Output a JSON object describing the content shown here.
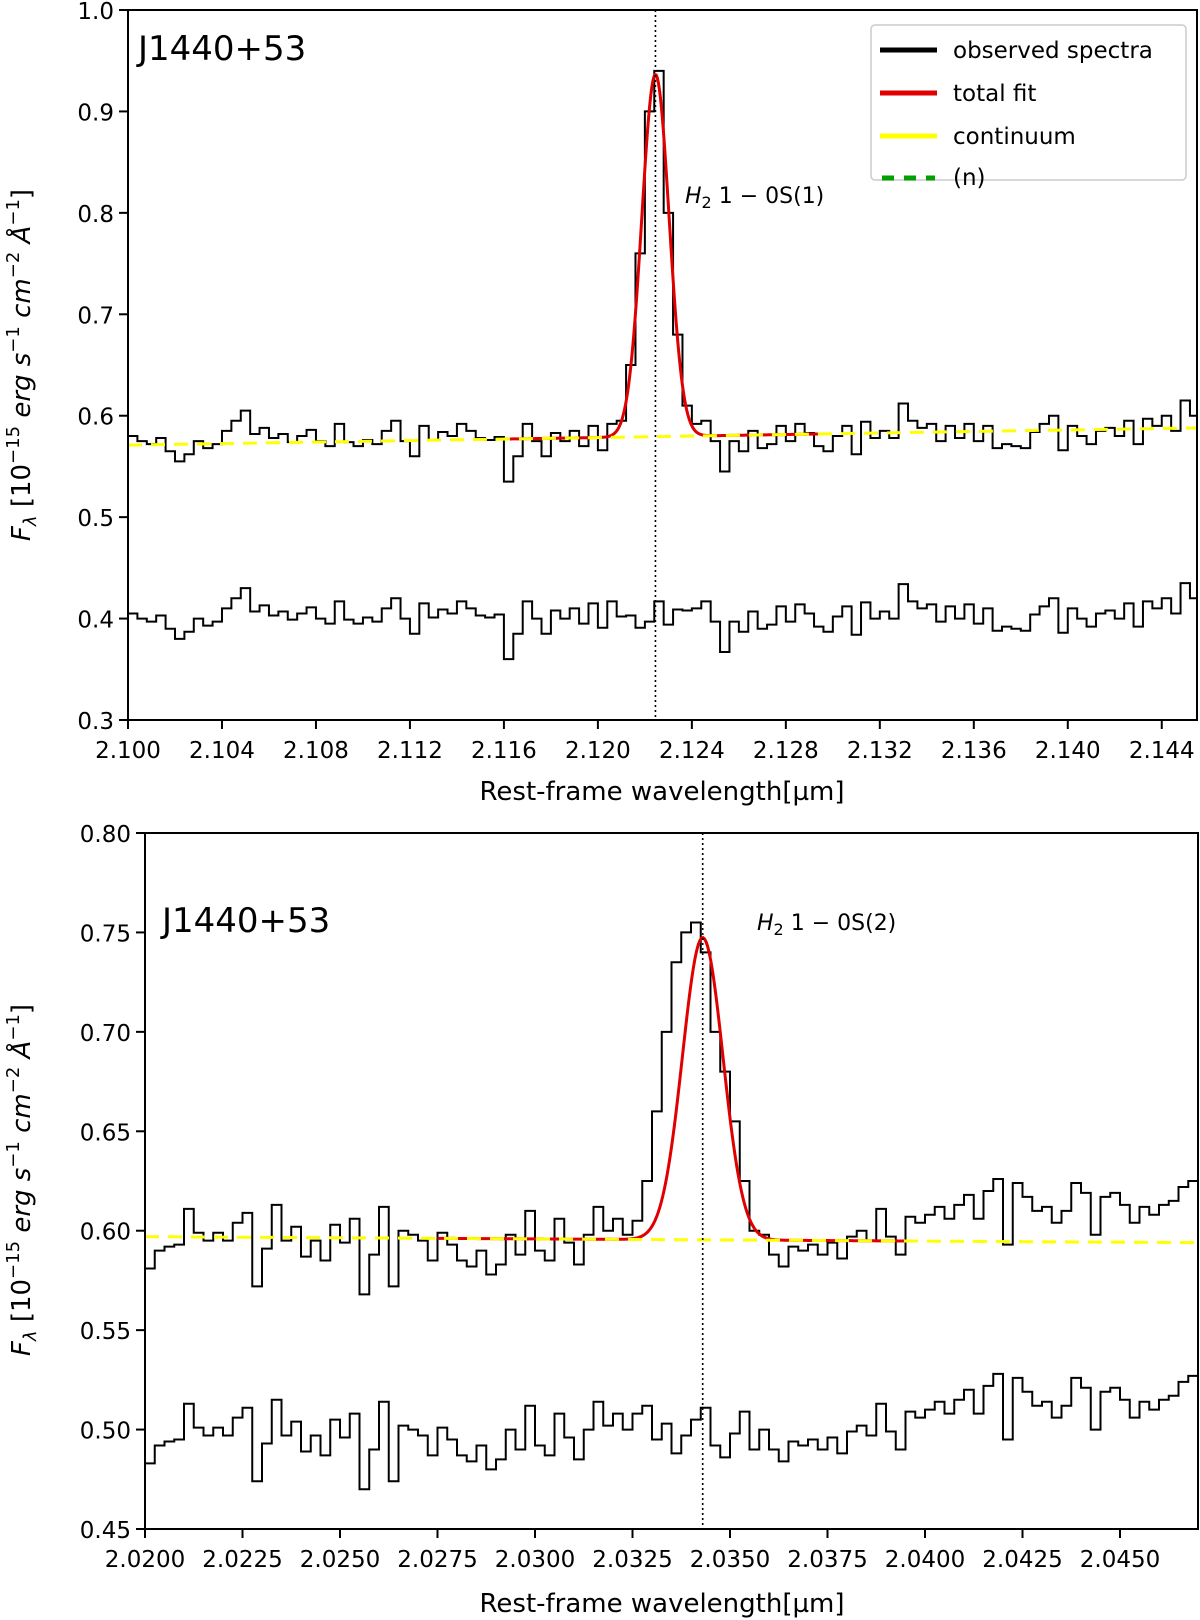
{
  "chart_data": [
    {
      "type": "line",
      "title": "J1440+53",
      "xlabel": "Rest-frame wavelength[µm]",
      "ylabel_segments": [
        {
          "t": "F",
          "s": "it"
        },
        {
          "t": "λ",
          "s": "sub"
        },
        {
          "t": " [10",
          "s": ""
        },
        {
          "t": "−15",
          "s": "sup"
        },
        {
          "t": " erg s",
          "s": "it"
        },
        {
          "t": "−1",
          "s": "sup"
        },
        {
          "t": " cm",
          "s": "it"
        },
        {
          "t": "−2",
          "s": "sup"
        },
        {
          "t": " Å",
          "s": "it"
        },
        {
          "t": "−1",
          "s": "sup"
        },
        {
          "t": "]",
          "s": ""
        }
      ],
      "xlim": [
        2.1,
        2.1455
      ],
      "ylim": [
        0.3,
        1.0
      ],
      "xticks": [
        "2.100",
        "2.104",
        "2.108",
        "2.112",
        "2.116",
        "2.120",
        "2.124",
        "2.128",
        "2.132",
        "2.136",
        "2.140",
        "2.144"
      ],
      "yticks": [
        "0.3",
        "0.4",
        "0.5",
        "0.6",
        "0.7",
        "0.8",
        "0.9",
        "1.0"
      ],
      "grid": false,
      "legend": {
        "placement": "top-right",
        "entries": [
          {
            "label": "observed spectra",
            "color": "#000000",
            "style": "solid"
          },
          {
            "label": "total fit",
            "color": "#e00000",
            "style": "solid"
          },
          {
            "label": "continuum",
            "color": "#ffff00",
            "style": "solid"
          },
          {
            "label": "(n)",
            "color": "#00a000",
            "style": "dashed"
          }
        ]
      },
      "line_marker": {
        "x": 2.12245,
        "label_main": "H",
        "label_sub": "2",
        "label_rest": " 1 − 0S(1)"
      },
      "bin_start": 2.1,
      "bin_width": 0.0004,
      "observed": [
        0.58,
        0.575,
        0.572,
        0.578,
        0.565,
        0.555,
        0.562,
        0.575,
        0.568,
        0.572,
        0.585,
        0.595,
        0.605,
        0.582,
        0.588,
        0.578,
        0.582,
        0.574,
        0.58,
        0.586,
        0.575,
        0.57,
        0.592,
        0.574,
        0.57,
        0.576,
        0.572,
        0.585,
        0.595,
        0.575,
        0.56,
        0.59,
        0.576,
        0.584,
        0.58,
        0.592,
        0.585,
        0.578,
        0.576,
        0.579,
        0.535,
        0.56,
        0.592,
        0.575,
        0.56,
        0.583,
        0.575,
        0.585,
        0.57,
        0.59,
        0.566,
        0.592,
        0.595,
        0.65,
        0.76,
        0.9,
        0.94,
        0.8,
        0.68,
        0.61,
        0.592,
        0.595,
        0.575,
        0.545,
        0.575,
        0.565,
        0.585,
        0.568,
        0.572,
        0.59,
        0.575,
        0.592,
        0.583,
        0.57,
        0.565,
        0.58,
        0.59,
        0.562,
        0.594,
        0.578,
        0.585,
        0.578,
        0.612,
        0.595,
        0.588,
        0.592,
        0.575,
        0.59,
        0.578,
        0.592,
        0.575,
        0.59,
        0.568,
        0.572,
        0.57,
        0.568,
        0.584,
        0.592,
        0.6,
        0.566,
        0.59,
        0.58,
        0.572,
        0.585,
        0.588,
        0.58,
        0.595,
        0.572,
        0.597,
        0.59,
        0.6,
        0.585,
        0.615,
        0.6
      ],
      "residual": [
        0.405,
        0.4,
        0.397,
        0.403,
        0.39,
        0.38,
        0.387,
        0.4,
        0.393,
        0.397,
        0.41,
        0.42,
        0.43,
        0.407,
        0.413,
        0.403,
        0.407,
        0.399,
        0.405,
        0.411,
        0.4,
        0.395,
        0.417,
        0.399,
        0.395,
        0.401,
        0.397,
        0.41,
        0.42,
        0.4,
        0.385,
        0.415,
        0.401,
        0.409,
        0.405,
        0.417,
        0.41,
        0.403,
        0.401,
        0.404,
        0.36,
        0.385,
        0.417,
        0.4,
        0.385,
        0.408,
        0.4,
        0.41,
        0.395,
        0.415,
        0.391,
        0.417,
        0.402,
        0.403,
        0.391,
        0.397,
        0.417,
        0.394,
        0.409,
        0.408,
        0.41,
        0.417,
        0.397,
        0.367,
        0.397,
        0.387,
        0.407,
        0.39,
        0.394,
        0.412,
        0.397,
        0.414,
        0.405,
        0.392,
        0.387,
        0.402,
        0.412,
        0.384,
        0.416,
        0.4,
        0.407,
        0.4,
        0.434,
        0.417,
        0.41,
        0.414,
        0.397,
        0.412,
        0.4,
        0.414,
        0.395,
        0.41,
        0.388,
        0.392,
        0.39,
        0.388,
        0.404,
        0.412,
        0.42,
        0.386,
        0.41,
        0.4,
        0.392,
        0.405,
        0.408,
        0.4,
        0.415,
        0.392,
        0.417,
        0.41,
        0.42,
        0.405,
        0.435,
        0.42
      ],
      "continuum": {
        "x": [
          2.1,
          2.1455
        ],
        "y": [
          0.571,
          0.588
        ]
      },
      "fit": {
        "range": [
          2.116,
          2.1295
        ],
        "center": 2.12245,
        "amplitude": 0.357,
        "sigma": 0.00058
      }
    },
    {
      "type": "line",
      "title": "J1440+53",
      "xlabel": "Rest-frame wavelength[µm]",
      "ylabel_segments": [
        {
          "t": "F",
          "s": "it"
        },
        {
          "t": "λ",
          "s": "sub"
        },
        {
          "t": " [10",
          "s": ""
        },
        {
          "t": "−15",
          "s": "sup"
        },
        {
          "t": " erg s",
          "s": "it"
        },
        {
          "t": "−1",
          "s": "sup"
        },
        {
          "t": " cm",
          "s": "it"
        },
        {
          "t": "−2",
          "s": "sup"
        },
        {
          "t": " Å",
          "s": "it"
        },
        {
          "t": "−1",
          "s": "sup"
        },
        {
          "t": "]",
          "s": ""
        }
      ],
      "xlim": [
        2.02,
        2.047
      ],
      "ylim": [
        0.45,
        0.8
      ],
      "xticks": [
        "2.0200",
        "2.0225",
        "2.0250",
        "2.0275",
        "2.0300",
        "2.0325",
        "2.0350",
        "2.0375",
        "2.0400",
        "2.0425",
        "2.0450"
      ],
      "yticks": [
        "0.45",
        "0.50",
        "0.55",
        "0.60",
        "0.65",
        "0.70",
        "0.75",
        "0.80"
      ],
      "grid": false,
      "line_marker": {
        "x": 2.0343,
        "label_main": "H",
        "label_sub": "2",
        "label_rest": " 1 − 0S(2)"
      },
      "bin_start": 2.02,
      "bin_width": 0.00025,
      "observed": [
        0.581,
        0.59,
        0.592,
        0.593,
        0.611,
        0.599,
        0.595,
        0.599,
        0.595,
        0.604,
        0.609,
        0.572,
        0.591,
        0.613,
        0.595,
        0.602,
        0.587,
        0.595,
        0.585,
        0.603,
        0.594,
        0.606,
        0.568,
        0.588,
        0.612,
        0.572,
        0.6,
        0.598,
        0.595,
        0.585,
        0.599,
        0.593,
        0.585,
        0.582,
        0.59,
        0.578,
        0.583,
        0.598,
        0.588,
        0.61,
        0.59,
        0.585,
        0.606,
        0.594,
        0.583,
        0.598,
        0.612,
        0.6,
        0.606,
        0.598,
        0.605,
        0.625,
        0.66,
        0.7,
        0.735,
        0.75,
        0.755,
        0.74,
        0.7,
        0.68,
        0.655,
        0.625,
        0.6,
        0.598,
        0.588,
        0.582,
        0.592,
        0.59,
        0.593,
        0.588,
        0.594,
        0.586,
        0.597,
        0.6,
        0.595,
        0.611,
        0.597,
        0.588,
        0.607,
        0.604,
        0.608,
        0.612,
        0.606,
        0.613,
        0.618,
        0.606,
        0.62,
        0.626,
        0.593,
        0.624,
        0.617,
        0.61,
        0.612,
        0.604,
        0.61,
        0.624,
        0.619,
        0.598,
        0.617,
        0.619,
        0.613,
        0.604,
        0.612,
        0.608,
        0.613,
        0.615,
        0.622,
        0.625
      ],
      "residual": [
        0.483,
        0.492,
        0.494,
        0.495,
        0.513,
        0.501,
        0.497,
        0.501,
        0.497,
        0.506,
        0.511,
        0.474,
        0.493,
        0.515,
        0.497,
        0.504,
        0.489,
        0.497,
        0.487,
        0.505,
        0.496,
        0.508,
        0.47,
        0.49,
        0.514,
        0.474,
        0.502,
        0.5,
        0.497,
        0.487,
        0.501,
        0.495,
        0.487,
        0.484,
        0.492,
        0.48,
        0.485,
        0.5,
        0.49,
        0.512,
        0.492,
        0.487,
        0.508,
        0.496,
        0.485,
        0.5,
        0.514,
        0.502,
        0.508,
        0.5,
        0.508,
        0.512,
        0.495,
        0.503,
        0.488,
        0.497,
        0.505,
        0.511,
        0.492,
        0.486,
        0.498,
        0.509,
        0.49,
        0.5,
        0.49,
        0.484,
        0.494,
        0.492,
        0.495,
        0.49,
        0.496,
        0.488,
        0.499,
        0.502,
        0.497,
        0.513,
        0.499,
        0.49,
        0.509,
        0.506,
        0.51,
        0.514,
        0.508,
        0.515,
        0.52,
        0.508,
        0.522,
        0.528,
        0.495,
        0.526,
        0.519,
        0.512,
        0.514,
        0.506,
        0.512,
        0.526,
        0.521,
        0.5,
        0.519,
        0.521,
        0.515,
        0.506,
        0.514,
        0.51,
        0.515,
        0.517,
        0.524,
        0.527
      ],
      "continuum": {
        "x": [
          2.02,
          2.047
        ],
        "y": [
          0.597,
          0.594
        ]
      },
      "fit": {
        "range": [
          2.0275,
          2.0398
        ],
        "center": 2.0343,
        "amplitude": 0.152,
        "sigma": 0.00052
      }
    }
  ]
}
